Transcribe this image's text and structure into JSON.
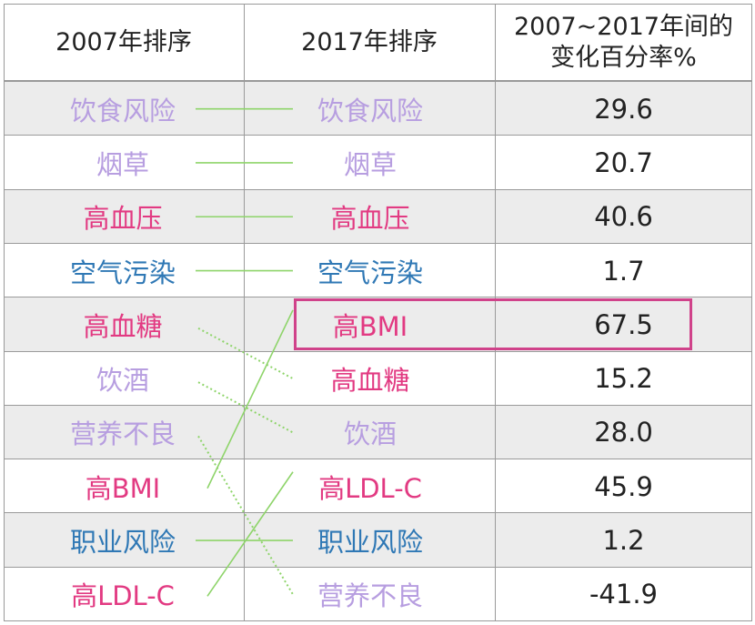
{
  "header": {
    "col_2007": "2007年排序",
    "col_2017": "2017年排序",
    "col_change_line1": "2007~2017年间的",
    "col_change_line2": "变化百分率%"
  },
  "colors": {
    "purple": "#b79ee0",
    "pink": "#e23a82",
    "blue": "#2f78b5",
    "connector": "#8ed46a",
    "highlight": "#d0428a"
  },
  "rows_2007": [
    {
      "label": "饮食风险",
      "color": "purple"
    },
    {
      "label": "烟草",
      "color": "purple"
    },
    {
      "label": "高血压",
      "color": "pink"
    },
    {
      "label": "空气污染",
      "color": "blue"
    },
    {
      "label": "高血糖",
      "color": "pink"
    },
    {
      "label": "饮酒",
      "color": "purple"
    },
    {
      "label": "营养不良",
      "color": "purple"
    },
    {
      "label": "高BMI",
      "color": "pink"
    },
    {
      "label": "职业风险",
      "color": "blue"
    },
    {
      "label": "高LDL-C",
      "color": "pink"
    }
  ],
  "rows_2017": [
    {
      "label": "饮食风险",
      "color": "purple"
    },
    {
      "label": "烟草",
      "color": "purple"
    },
    {
      "label": "高血压",
      "color": "pink"
    },
    {
      "label": "空气污染",
      "color": "blue"
    },
    {
      "label": "高BMI",
      "color": "pink"
    },
    {
      "label": "高血糖",
      "color": "pink"
    },
    {
      "label": "饮酒",
      "color": "purple"
    },
    {
      "label": "高LDL-C",
      "color": "pink"
    },
    {
      "label": "职业风险",
      "color": "blue"
    },
    {
      "label": "营养不良",
      "color": "purple"
    }
  ],
  "change_pct": [
    "29.6",
    "20.7",
    "40.6",
    "1.7",
    "67.5",
    "15.2",
    "28.0",
    "45.9",
    "1.2",
    "-41.9"
  ],
  "shaded_rows": [
    true,
    false,
    true,
    false,
    true,
    false,
    true,
    false,
    true,
    false
  ],
  "highlighted_row_2017": 5,
  "links": [
    {
      "from": 1,
      "to": 1,
      "style": "solid"
    },
    {
      "from": 2,
      "to": 2,
      "style": "solid"
    },
    {
      "from": 3,
      "to": 3,
      "style": "solid"
    },
    {
      "from": 4,
      "to": 4,
      "style": "solid"
    },
    {
      "from": 5,
      "to": 6,
      "style": "dotted"
    },
    {
      "from": 6,
      "to": 7,
      "style": "dotted"
    },
    {
      "from": 7,
      "to": 10,
      "style": "dotted"
    },
    {
      "from": 8,
      "to": 5,
      "style": "solid"
    },
    {
      "from": 9,
      "to": 9,
      "style": "solid"
    },
    {
      "from": 10,
      "to": 8,
      "style": "solid"
    }
  ]
}
